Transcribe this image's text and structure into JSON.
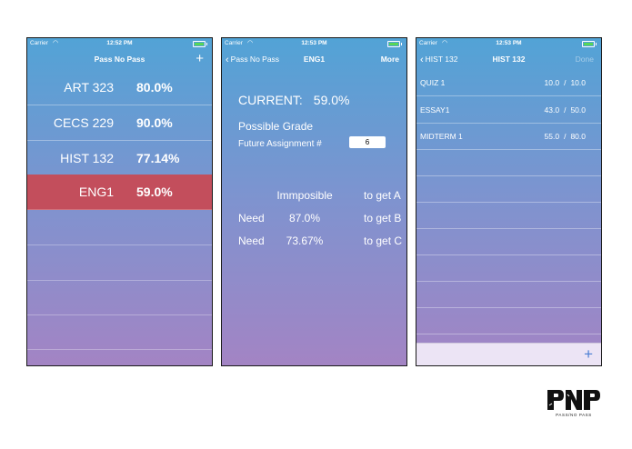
{
  "status": {
    "carrier": "Carrier",
    "times": [
      "12:52 PM",
      "12:53 PM",
      "12:53 PM"
    ]
  },
  "screen1": {
    "title": "Pass No Pass",
    "add": "+",
    "courses": [
      {
        "name": "ART 323",
        "percent": "80.0%"
      },
      {
        "name": "CECS 229",
        "percent": "90.0%"
      },
      {
        "name": "HIST 132",
        "percent": "77.14%"
      },
      {
        "name": "ENG1",
        "percent": "59.0%",
        "selected": true
      }
    ]
  },
  "screen2": {
    "back": "Pass No Pass",
    "title": "ENG1",
    "right": "More",
    "current_label": "CURRENT:",
    "current_value": "59.0%",
    "possible_label": "Possible Grade",
    "future_label": "Future Assignment #",
    "future_value": "6",
    "grades": [
      {
        "prefix": "",
        "value": "Immposible",
        "target": "to get A"
      },
      {
        "prefix": "Need",
        "value": "87.0%",
        "target": "to get B"
      },
      {
        "prefix": "Need",
        "value": "73.67%",
        "target": "to get C"
      }
    ]
  },
  "screen3": {
    "back": "HIST 132",
    "title": "HIST 132",
    "right": "Done",
    "add": "+",
    "assignments": [
      {
        "name": "QUIZ 1",
        "earned": "10.0",
        "sep": "/",
        "total": "10.0"
      },
      {
        "name": "ESSAY1",
        "earned": "43.0",
        "sep": "/",
        "total": "50.0"
      },
      {
        "name": "MIDTERM 1",
        "earned": "55.0",
        "sep": "/",
        "total": "80.0"
      }
    ]
  },
  "logo": {
    "tagline": "PASS/NO PASS"
  },
  "colors": {
    "selected_row": "#c34e5c",
    "gradient_top": "#52a3d6",
    "gradient_bottom": "#a384c4",
    "add_button": "#4a7fd4"
  }
}
